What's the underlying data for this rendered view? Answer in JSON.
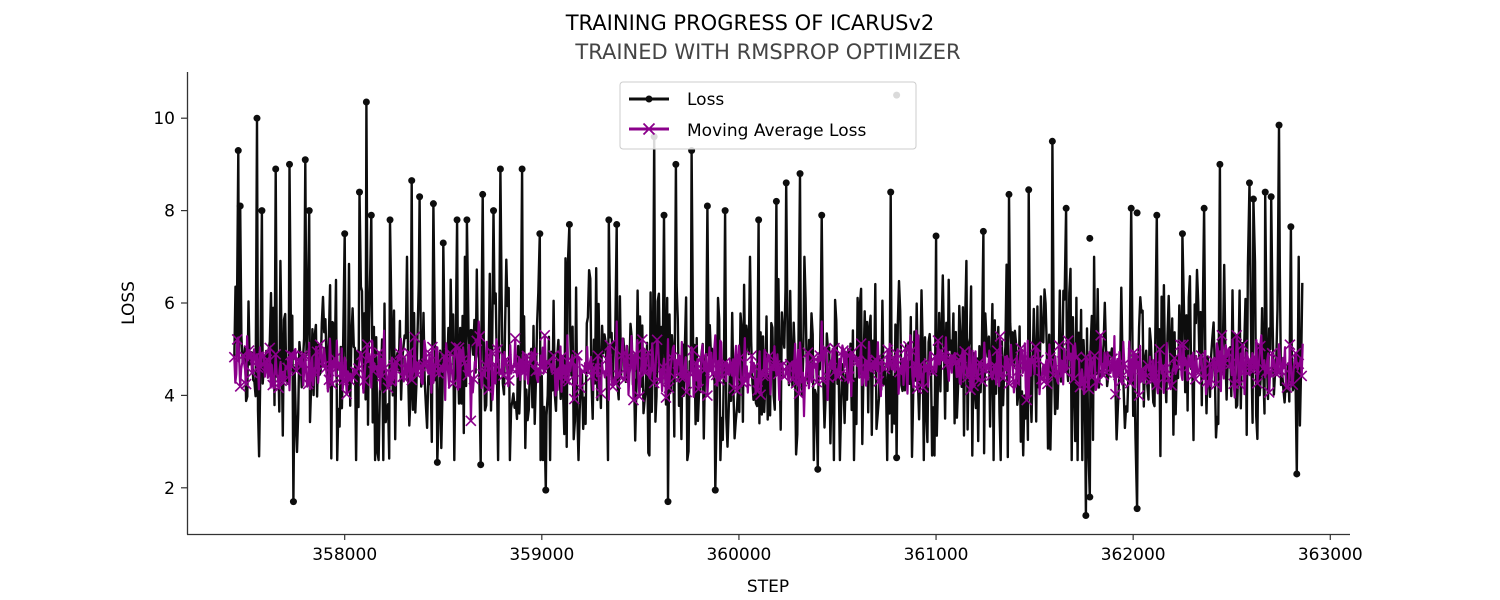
{
  "chart_data": {
    "type": "line",
    "title": "TRAINING PROGRESS OF ICARUSv2",
    "subtitle": "TRAINED WITH RMSPROP OPTIMIZER",
    "xlabel": "STEP",
    "ylabel": "LOSS",
    "xlim": [
      357200,
      363100
    ],
    "ylim": [
      1.0,
      11.0
    ],
    "xticks": [
      358000,
      359000,
      360000,
      361000,
      362000,
      363000
    ],
    "yticks": [
      2,
      4,
      6,
      8,
      10
    ],
    "grid": false,
    "legend_position": "top-center",
    "x_range": [
      357440,
      362860
    ],
    "series": [
      {
        "name": "Loss",
        "color": "#0d0d0d",
        "marker": "circle",
        "band": [
          2.6,
          7.0
        ],
        "mean": 4.6,
        "peaks": [
          {
            "x": 357460,
            "y": 9.3
          },
          {
            "x": 357470,
            "y": 8.1
          },
          {
            "x": 357555,
            "y": 10.0
          },
          {
            "x": 357580,
            "y": 8.0
          },
          {
            "x": 357650,
            "y": 8.9
          },
          {
            "x": 357720,
            "y": 9.0
          },
          {
            "x": 357800,
            "y": 9.1
          },
          {
            "x": 357820,
            "y": 8.0
          },
          {
            "x": 358000,
            "y": 7.5
          },
          {
            "x": 358075,
            "y": 8.4
          },
          {
            "x": 358110,
            "y": 10.35
          },
          {
            "x": 358135,
            "y": 7.9
          },
          {
            "x": 358230,
            "y": 7.8
          },
          {
            "x": 358340,
            "y": 8.65
          },
          {
            "x": 358380,
            "y": 8.3
          },
          {
            "x": 358450,
            "y": 8.15
          },
          {
            "x": 358500,
            "y": 7.3
          },
          {
            "x": 358570,
            "y": 7.8
          },
          {
            "x": 358620,
            "y": 7.8
          },
          {
            "x": 358700,
            "y": 8.35
          },
          {
            "x": 358755,
            "y": 8.0
          },
          {
            "x": 358790,
            "y": 8.9
          },
          {
            "x": 358900,
            "y": 8.9
          },
          {
            "x": 358990,
            "y": 7.5
          },
          {
            "x": 359140,
            "y": 7.7
          },
          {
            "x": 359340,
            "y": 7.8
          },
          {
            "x": 359380,
            "y": 7.7
          },
          {
            "x": 359570,
            "y": 9.6
          },
          {
            "x": 359620,
            "y": 7.9
          },
          {
            "x": 359680,
            "y": 9.0
          },
          {
            "x": 359760,
            "y": 9.3
          },
          {
            "x": 359840,
            "y": 8.1
          },
          {
            "x": 359930,
            "y": 8.0
          },
          {
            "x": 360100,
            "y": 7.8
          },
          {
            "x": 360190,
            "y": 8.2
          },
          {
            "x": 360240,
            "y": 8.6
          },
          {
            "x": 360310,
            "y": 8.8
          },
          {
            "x": 360420,
            "y": 7.9
          },
          {
            "x": 360770,
            "y": 8.4
          },
          {
            "x": 360800,
            "y": 10.5
          },
          {
            "x": 361000,
            "y": 7.45
          },
          {
            "x": 361240,
            "y": 7.55
          },
          {
            "x": 361370,
            "y": 8.35
          },
          {
            "x": 361470,
            "y": 8.45
          },
          {
            "x": 361590,
            "y": 9.5
          },
          {
            "x": 361660,
            "y": 8.05
          },
          {
            "x": 361780,
            "y": 7.4
          },
          {
            "x": 361990,
            "y": 8.05
          },
          {
            "x": 362020,
            "y": 7.95
          },
          {
            "x": 362120,
            "y": 7.9
          },
          {
            "x": 362250,
            "y": 7.5
          },
          {
            "x": 362360,
            "y": 8.05
          },
          {
            "x": 362440,
            "y": 9.0
          },
          {
            "x": 362590,
            "y": 8.6
          },
          {
            "x": 362610,
            "y": 8.25
          },
          {
            "x": 362670,
            "y": 8.4
          },
          {
            "x": 362700,
            "y": 8.3
          },
          {
            "x": 362740,
            "y": 9.85
          },
          {
            "x": 362800,
            "y": 7.65
          }
        ],
        "troughs": [
          {
            "x": 357740,
            "y": 1.7
          },
          {
            "x": 358470,
            "y": 2.55
          },
          {
            "x": 358690,
            "y": 2.5
          },
          {
            "x": 359020,
            "y": 1.95
          },
          {
            "x": 359640,
            "y": 1.7
          },
          {
            "x": 359880,
            "y": 1.95
          },
          {
            "x": 360400,
            "y": 2.4
          },
          {
            "x": 360800,
            "y": 2.65
          },
          {
            "x": 361760,
            "y": 1.4
          },
          {
            "x": 361780,
            "y": 1.8
          },
          {
            "x": 362020,
            "y": 1.55
          },
          {
            "x": 362830,
            "y": 2.3
          }
        ]
      },
      {
        "name": "Moving Average Loss",
        "color": "#8b008b",
        "marker": "x",
        "band": [
          3.9,
          5.3
        ],
        "mean": 4.62,
        "peaks": [
          {
            "x": 358200,
            "y": 5.4
          },
          {
            "x": 358680,
            "y": 5.6
          },
          {
            "x": 359380,
            "y": 5.6
          },
          {
            "x": 360420,
            "y": 5.6
          },
          {
            "x": 360900,
            "y": 5.4
          }
        ],
        "troughs": [
          {
            "x": 358640,
            "y": 3.45
          },
          {
            "x": 359340,
            "y": 3.9
          },
          {
            "x": 360330,
            "y": 3.55
          }
        ]
      }
    ]
  }
}
